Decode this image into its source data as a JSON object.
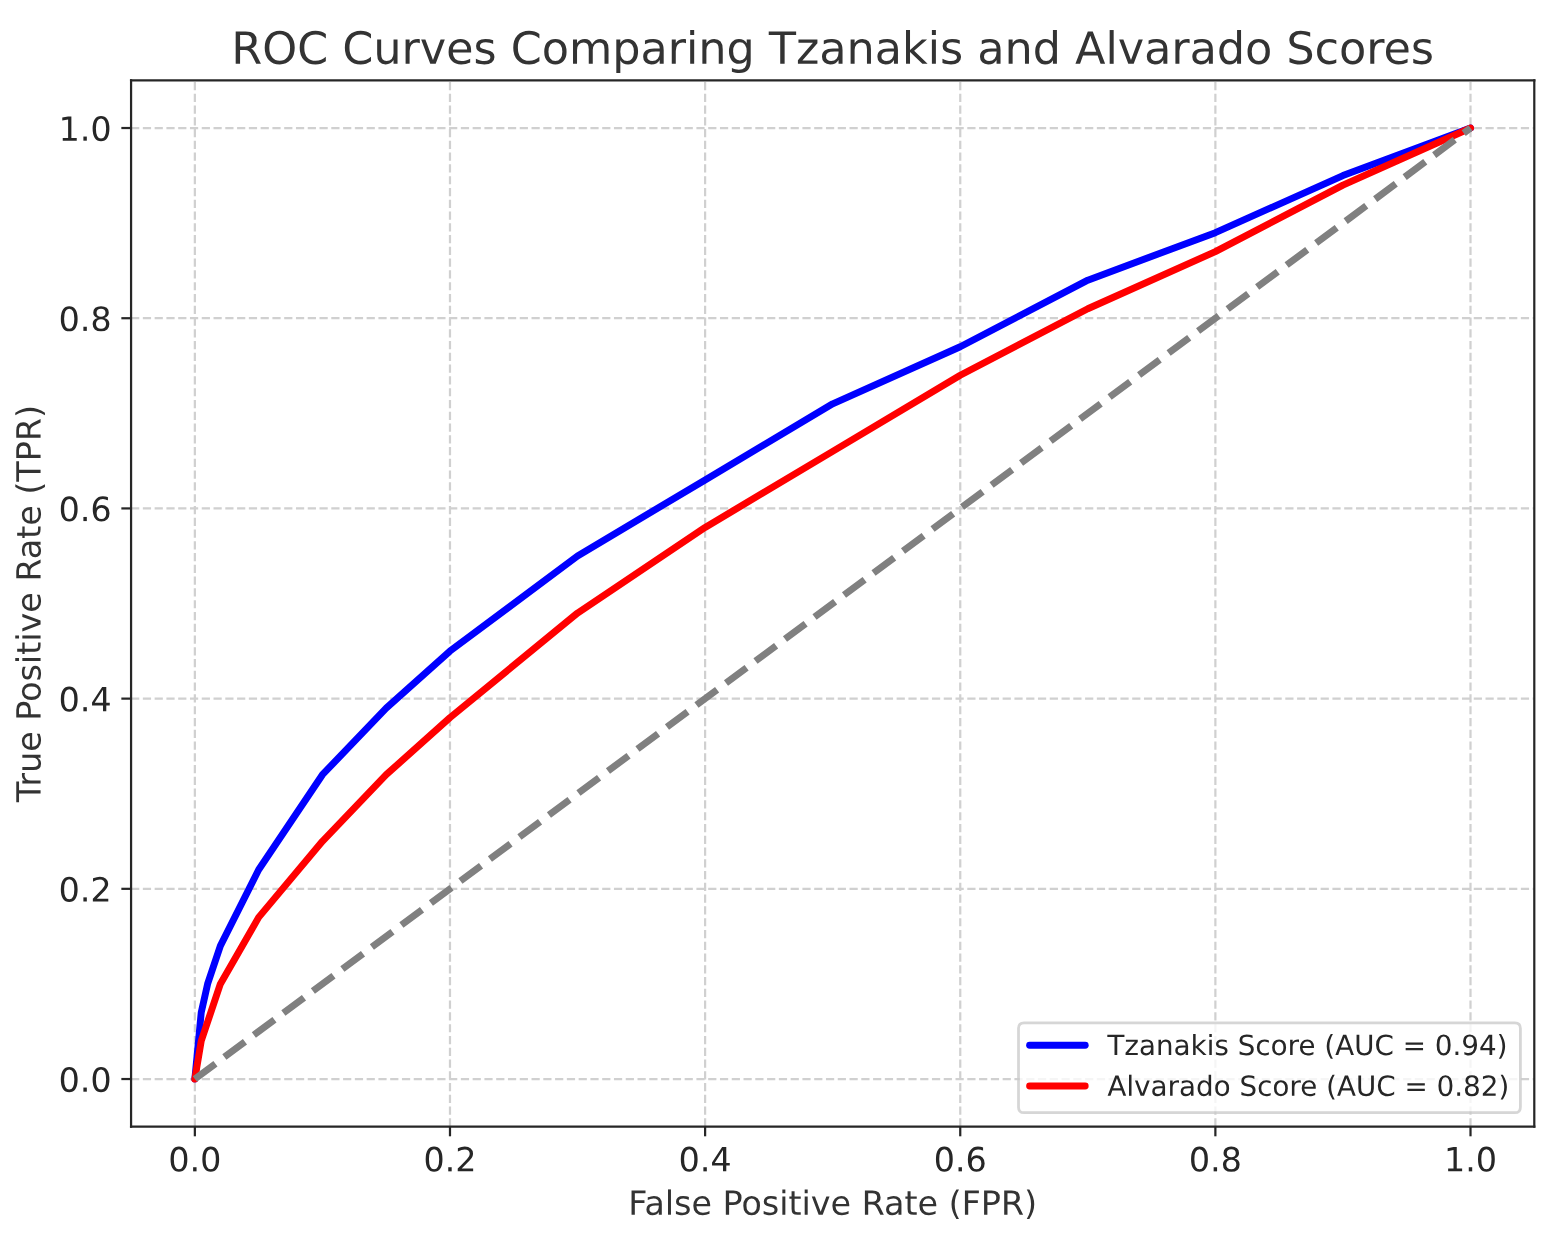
{
  "chart_data": {
    "type": "line",
    "title": "ROC Curves Comparing Tzanakis and Alvarado Scores",
    "xlabel": "False Positive Rate (FPR)",
    "ylabel": "True Positive Rate (TPR)",
    "x": [
      0,
      0.005,
      0.01,
      0.02,
      0.05,
      0.1,
      0.15,
      0.2,
      0.3,
      0.4,
      0.5,
      0.6,
      0.7,
      0.8,
      0.9,
      1.0
    ],
    "series": [
      {
        "name": "Tzanakis Score (AUC = 0.94)",
        "color": "#0000ff",
        "line_style": "solid",
        "values": [
          0,
          0.07,
          0.1,
          0.14,
          0.22,
          0.32,
          0.39,
          0.45,
          0.55,
          0.63,
          0.71,
          0.77,
          0.84,
          0.89,
          0.95,
          1.0
        ]
      },
      {
        "name": "Alvarado Score (AUC = 0.82)",
        "color": "#ff0000",
        "line_style": "solid",
        "values": [
          0,
          0.04,
          0.06,
          0.1,
          0.17,
          0.25,
          0.32,
          0.38,
          0.49,
          0.58,
          0.66,
          0.74,
          0.81,
          0.87,
          0.94,
          1.0
        ]
      },
      {
        "color": "#808080",
        "line_style": "dashed",
        "x": [
          0,
          1.0
        ],
        "values": [
          0,
          1.0
        ]
      }
    ],
    "xlim": [
      -0.05,
      1.05
    ],
    "ylim": [
      -0.05,
      1.05
    ],
    "xticks": [
      {
        "value": 0,
        "label": "0.0"
      },
      {
        "value": 0.2,
        "label": "0.2"
      },
      {
        "value": 0.4,
        "label": "0.4"
      },
      {
        "value": 0.6,
        "label": "0.6"
      },
      {
        "value": 0.8,
        "label": "0.8"
      },
      {
        "value": 1.0,
        "label": "1.0"
      }
    ],
    "yticks": [
      {
        "value": 0,
        "label": "0.0"
      },
      {
        "value": 0.2,
        "label": "0.2"
      },
      {
        "value": 0.4,
        "label": "0.4"
      },
      {
        "value": 0.6,
        "label": "0.6"
      },
      {
        "value": 0.8,
        "label": "0.8"
      },
      {
        "value": 1.0,
        "label": "1.0"
      }
    ],
    "grid": true,
    "legend": "bottom right",
    "marker": "none"
  }
}
